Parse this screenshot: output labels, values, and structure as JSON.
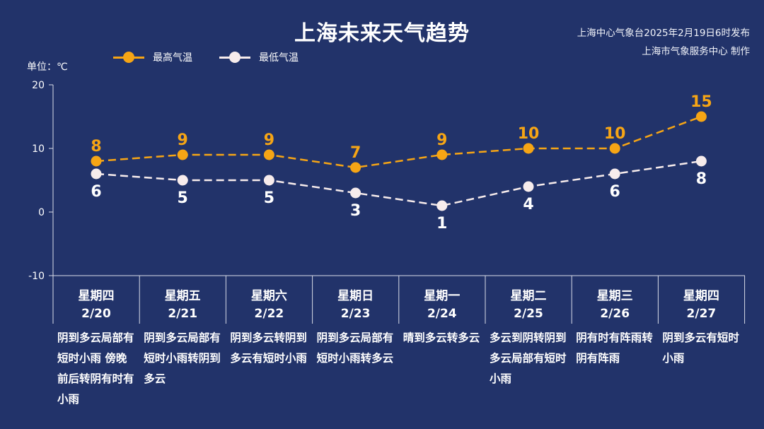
{
  "title": "上海未来天气趋势",
  "issuer": {
    "line1": "上海中心气象台2025年2月19日6时发布",
    "line2": "上海市气象服务中心 制作"
  },
  "colors": {
    "background": "#22336a",
    "high": "#f6a515",
    "low": "#f7ecec",
    "axis": "#d9dce8"
  },
  "chart_data": {
    "type": "line",
    "unit_label": "单位：℃",
    "ylim": [
      -10,
      20
    ],
    "yticks": [
      -10,
      0,
      10,
      20
    ],
    "categories": [
      {
        "weekday": "星期四",
        "date": "2/20",
        "desc": "阴到多云局部有短时小雨 傍晚前后转阴有时有小雨"
      },
      {
        "weekday": "星期五",
        "date": "2/21",
        "desc": "阴到多云局部有短时小雨转阴到多云"
      },
      {
        "weekday": "星期六",
        "date": "2/22",
        "desc": "阴到多云转阴到多云有短时小雨"
      },
      {
        "weekday": "星期日",
        "date": "2/23",
        "desc": "阴到多云局部有短时小雨转多云"
      },
      {
        "weekday": "星期一",
        "date": "2/24",
        "desc": "晴到多云转多云"
      },
      {
        "weekday": "星期二",
        "date": "2/25",
        "desc": "多云到阴转阴到多云局部有短时小雨"
      },
      {
        "weekday": "星期三",
        "date": "2/26",
        "desc": "阴有时有阵雨转阴有阵雨"
      },
      {
        "weekday": "星期四",
        "date": "2/27",
        "desc": "阴到多云有短时小雨"
      }
    ],
    "series": [
      {
        "name": "最高气温",
        "key": "high",
        "values": [
          8,
          9,
          9,
          7,
          9,
          10,
          10,
          15
        ]
      },
      {
        "name": "最低气温",
        "key": "low",
        "values": [
          6,
          5,
          5,
          3,
          1,
          4,
          6,
          8
        ]
      }
    ],
    "legend_position": "top-left",
    "grid": false
  }
}
